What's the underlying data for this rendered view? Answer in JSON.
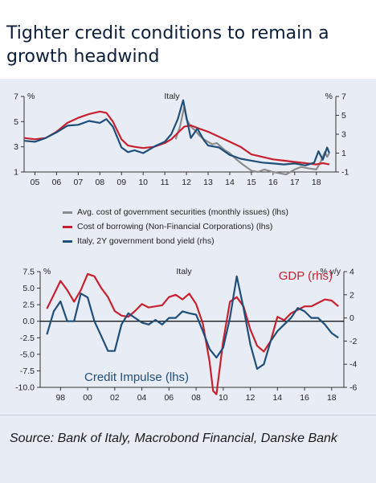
{
  "page": {
    "title": "Tighter credit conditions to remain a growth headwind"
  },
  "source": "Source: Bank of Italy, Macrobond Financial, Danske Bank",
  "chart_data": [
    {
      "type": "line",
      "title": "Italy",
      "left_unit": "%",
      "right_unit": "%",
      "ylim_left": [
        1,
        7
      ],
      "ylim_right": [
        -1,
        7
      ],
      "left_ticks": [
        "7",
        "5",
        "3",
        "1"
      ],
      "left_tick_values": [
        7,
        5,
        3,
        1
      ],
      "right_ticks": [
        "7",
        "5",
        "3",
        "1",
        "-1"
      ],
      "right_tick_values": [
        7,
        5,
        3,
        1,
        -1
      ],
      "x_tick_labels": [
        "05",
        "06",
        "07",
        "08",
        "09",
        "10",
        "11",
        "12",
        "13",
        "14",
        "15",
        "16",
        "17",
        "18"
      ],
      "x_tick_values": [
        2005,
        2006,
        2007,
        2008,
        2009,
        2010,
        2011,
        2012,
        2013,
        2014,
        2015,
        2016,
        2017,
        2018
      ],
      "xlim": [
        2004.5,
        2018.9
      ],
      "grid": "horizontal",
      "series": [
        {
          "name": "Avg. cost of government securities (monthly issues) (lhs)",
          "axis": "left",
          "color": "#8c8c8c",
          "x": [
            2011.5,
            2011.7,
            2011.9,
            2012.0,
            2012.2,
            2012.4,
            2012.6,
            2012.8,
            2013.0,
            2013.2,
            2013.4,
            2013.6,
            2013.8,
            2014.0,
            2014.3,
            2014.6,
            2015.0,
            2015.3,
            2015.6,
            2016.0,
            2016.3,
            2016.6,
            2017.0,
            2017.3,
            2017.6,
            2018.0,
            2018.2,
            2018.4,
            2018.5,
            2018.6
          ],
          "y": [
            3.6,
            4.6,
            6.2,
            5.2,
            4.6,
            4.3,
            3.9,
            3.6,
            3.4,
            3.2,
            3.3,
            3.0,
            2.7,
            2.5,
            2.0,
            1.6,
            1.1,
            1.0,
            1.2,
            1.0,
            0.9,
            0.8,
            1.2,
            1.4,
            1.3,
            1.2,
            1.8,
            2.6,
            2.2,
            2.5
          ]
        },
        {
          "name": "Cost of borrowing (Non-Financial Corporations) (lhs)",
          "axis": "left",
          "color": "#c8202e",
          "x": [
            2004.5,
            2005.0,
            2005.5,
            2006.0,
            2006.5,
            2007.0,
            2007.5,
            2008.0,
            2008.3,
            2008.6,
            2009.0,
            2009.3,
            2009.6,
            2010.0,
            2010.5,
            2011.0,
            2011.3,
            2011.6,
            2011.9,
            2012.2,
            2012.5,
            2013.0,
            2013.5,
            2014.0,
            2014.5,
            2015.0,
            2015.5,
            2016.0,
            2016.5,
            2017.0,
            2017.5,
            2018.0,
            2018.3,
            2018.6
          ],
          "y": [
            3.7,
            3.6,
            3.7,
            4.2,
            4.9,
            5.3,
            5.6,
            5.8,
            5.7,
            5.0,
            3.6,
            3.1,
            3.0,
            2.9,
            3.0,
            3.3,
            3.6,
            4.1,
            4.6,
            4.7,
            4.5,
            4.2,
            3.8,
            3.4,
            3.0,
            2.4,
            2.2,
            2.0,
            1.9,
            1.8,
            1.7,
            1.6,
            1.7,
            1.6
          ]
        },
        {
          "name": "Italy, 2Y government bond yield (rhs)",
          "axis": "right",
          "color": "#1f4e79",
          "x": [
            2004.5,
            2005.0,
            2005.5,
            2006.0,
            2006.5,
            2007.0,
            2007.5,
            2008.0,
            2008.3,
            2008.6,
            2009.0,
            2009.3,
            2009.6,
            2010.0,
            2010.3,
            2010.6,
            2011.0,
            2011.3,
            2011.6,
            2011.85,
            2012.0,
            2012.2,
            2012.5,
            2012.8,
            2013.0,
            2013.5,
            2014.0,
            2014.5,
            2015.0,
            2015.5,
            2016.0,
            2016.5,
            2017.0,
            2017.5,
            2017.9,
            2018.1,
            2018.3,
            2018.5,
            2018.6
          ],
          "y": [
            2.3,
            2.2,
            2.6,
            3.2,
            3.9,
            4.0,
            4.4,
            4.2,
            4.6,
            3.8,
            1.6,
            1.1,
            1.3,
            1.0,
            1.4,
            1.8,
            2.2,
            3.0,
            4.6,
            6.6,
            4.8,
            2.6,
            3.6,
            2.4,
            1.8,
            1.6,
            0.8,
            0.4,
            0.2,
            0.0,
            -0.1,
            -0.2,
            -0.1,
            -0.3,
            0.0,
            1.2,
            0.3,
            1.6,
            1.0
          ]
        }
      ]
    },
    {
      "type": "line",
      "title": "Italy",
      "left_unit": "%",
      "right_unit": "% y/y",
      "ylim_left": [
        -10,
        7.5
      ],
      "ylim_right": [
        -6,
        4
      ],
      "left_ticks": [
        "7.5",
        "5.0",
        "2.5",
        "0.0",
        "-2.5",
        "-5.0",
        "-7.5",
        "-10.0"
      ],
      "left_tick_values": [
        7.5,
        5.0,
        2.5,
        0.0,
        -2.5,
        -5.0,
        -7.5,
        -10.0
      ],
      "right_ticks": [
        "4",
        "2",
        "0",
        "-2",
        "-4",
        "-6"
      ],
      "right_tick_values": [
        4,
        2,
        0,
        -2,
        -4,
        -6
      ],
      "x_tick_labels": [
        "98",
        "00",
        "02",
        "04",
        "06",
        "08",
        "10",
        "12",
        "14",
        "16",
        "18"
      ],
      "x_tick_values": [
        1998,
        2000,
        2002,
        2004,
        2006,
        2008,
        2010,
        2012,
        2014,
        2016,
        2018
      ],
      "xlim": [
        1996.5,
        2018.9
      ],
      "grid": "zero line",
      "series": [
        {
          "name": "GDP (rhs)",
          "axis": "right",
          "color": "#c8202e",
          "x": [
            1997.0,
            1997.5,
            1998.0,
            1998.5,
            1999.0,
            1999.5,
            2000.0,
            2000.5,
            2001.0,
            2001.5,
            2002.0,
            2002.5,
            2003.0,
            2003.5,
            2004.0,
            2004.5,
            2005.0,
            2005.5,
            2006.0,
            2006.5,
            2007.0,
            2007.5,
            2008.0,
            2008.5,
            2009.0,
            2009.25,
            2009.5,
            2010.0,
            2010.5,
            2011.0,
            2011.5,
            2012.0,
            2012.5,
            2013.0,
            2013.5,
            2014.0,
            2014.5,
            2015.0,
            2015.5,
            2016.0,
            2016.5,
            2017.0,
            2017.5,
            2018.0,
            2018.5
          ],
          "y": [
            0.8,
            2.0,
            3.2,
            2.4,
            1.4,
            2.4,
            3.8,
            3.6,
            2.6,
            1.8,
            0.6,
            0.2,
            0.1,
            0.6,
            1.2,
            0.9,
            1.0,
            1.1,
            1.8,
            2.0,
            1.6,
            2.1,
            1.2,
            -0.5,
            -3.8,
            -6.3,
            -6.6,
            -2.0,
            1.4,
            1.8,
            1.0,
            -1.0,
            -2.4,
            -2.9,
            -2.0,
            0.1,
            -0.2,
            0.4,
            0.7,
            1.0,
            1.0,
            1.3,
            1.6,
            1.5,
            1.0
          ]
        },
        {
          "name": "Credit Impulse (lhs)",
          "axis": "left",
          "color": "#1f4e79",
          "x": [
            1997.0,
            1997.5,
            1998.0,
            1998.5,
            1999.0,
            1999.5,
            2000.0,
            2000.5,
            2001.0,
            2001.5,
            2002.0,
            2002.5,
            2003.0,
            2003.5,
            2004.0,
            2004.5,
            2005.0,
            2005.5,
            2006.0,
            2006.5,
            2007.0,
            2007.5,
            2008.0,
            2008.5,
            2009.0,
            2009.5,
            2010.0,
            2010.5,
            2011.0,
            2011.5,
            2012.0,
            2012.5,
            2013.0,
            2013.5,
            2014.0,
            2014.5,
            2015.0,
            2015.5,
            2016.0,
            2016.5,
            2017.0,
            2017.5,
            2018.0,
            2018.5
          ],
          "y": [
            -2.0,
            1.5,
            3.0,
            0.0,
            0.0,
            4.2,
            3.6,
            0.0,
            -2.2,
            -4.5,
            -4.5,
            -0.5,
            1.2,
            0.5,
            -0.2,
            -0.5,
            0.2,
            -0.5,
            0.5,
            0.5,
            1.5,
            1.2,
            1.0,
            -1.5,
            -4.2,
            -5.5,
            -4.0,
            0.5,
            6.8,
            2.0,
            -3.5,
            -7.2,
            -6.5,
            -3.0,
            -1.5,
            -0.5,
            0.5,
            2.0,
            1.5,
            0.5,
            0.5,
            -0.5,
            -1.8,
            -2.5
          ]
        }
      ],
      "annotations": {
        "gdp_label": "GDP (rhs)",
        "credit_label": "Credit Impulse (lhs)"
      }
    }
  ]
}
